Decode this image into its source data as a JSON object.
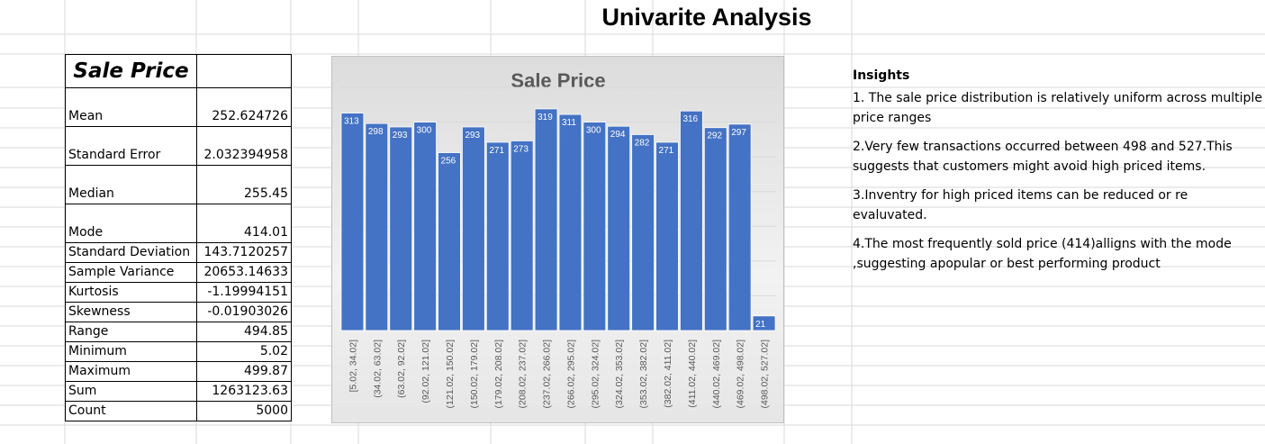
{
  "title": "Univarite Analysis",
  "stats": {
    "header": "Sale Price",
    "rows": [
      {
        "label": "Mean",
        "value": "252.624726"
      },
      {
        "label": "Standard Error",
        "value": "2.032394958"
      },
      {
        "label": "Median",
        "value": "255.45"
      },
      {
        "label": "Mode",
        "value": "414.01"
      },
      {
        "label": "Standard Deviation",
        "value": "143.7120257"
      },
      {
        "label": "Sample Variance",
        "value": "20653.14633"
      },
      {
        "label": "Kurtosis",
        "value": "-1.19994151"
      },
      {
        "label": "Skewness",
        "value": "-0.01903026"
      },
      {
        "label": "Range",
        "value": "494.85"
      },
      {
        "label": "Minimum",
        "value": "5.02"
      },
      {
        "label": "Maximum",
        "value": "499.87"
      },
      {
        "label": "Sum",
        "value": "1263123.63"
      },
      {
        "label": "Count",
        "value": "5000"
      }
    ]
  },
  "insights": {
    "heading": "Insights",
    "points": [
      "1. The sale price distribution is relatively uniform across multiple price ranges",
      "2.Very few transactions occurred between 498 and 527.This suggests that customers might avoid high priced items.",
      "3.Inventry for high priced items can be reduced or re evaluvated.",
      "4.The most frequently sold price (414)alligns with the mode ,suggesting apopular or best performing product"
    ]
  },
  "colors": {
    "bar": "#4472c4",
    "gridline": "#d9d9d9"
  },
  "chart_data": {
    "type": "bar",
    "title": "Sale Price",
    "categories": [
      "[5.02, 34.02]",
      "(34.02, 63.02]",
      "(63.02, 92.02]",
      "(92.02, 121.02]",
      "(121.02, 150.02]",
      "(150.02, 179.02]",
      "(179.02, 208.02]",
      "(208.02, 237.02]",
      "(237.02, 266.02]",
      "(266.02, 295.02]",
      "(295.02, 324.02]",
      "(324.02, 353.02]",
      "(353.02, 382.02]",
      "(382.02, 411.02]",
      "(411.02, 440.02]",
      "(440.02, 469.02]",
      "(469.02, 498.02]",
      "(498.02, 527.02]"
    ],
    "values": [
      313,
      298,
      293,
      300,
      256,
      293,
      271,
      273,
      319,
      311,
      300,
      294,
      282,
      271,
      316,
      292,
      297,
      21
    ],
    "ylim": [
      0,
      350
    ],
    "grid": true,
    "data_labels": true,
    "xlabel": "",
    "ylabel": ""
  }
}
